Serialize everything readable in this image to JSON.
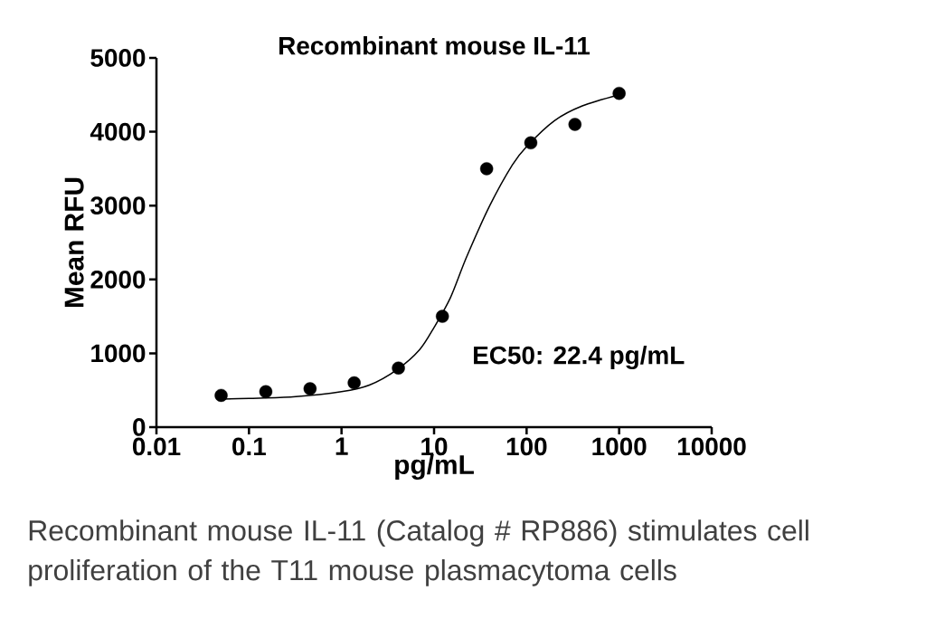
{
  "chart_data": {
    "type": "scatter",
    "title": "Recombinant mouse IL-11",
    "xlabel": "pg/mL",
    "ylabel": "Mean RFU",
    "log": "x",
    "series": [
      {
        "marker": "circle",
        "color": "#000000",
        "x": [
          0.05,
          0.152,
          0.457,
          1.37,
          4.12,
          12.3,
          37,
          111,
          333,
          1000
        ],
        "values": [
          430,
          480,
          520,
          600,
          800,
          1500,
          3500,
          3850,
          4100,
          4520
        ]
      },
      {
        "type": "line",
        "marker": "none",
        "color": "#000000",
        "x": [
          0.05,
          0.1,
          0.3,
          1,
          2,
          4,
          7,
          10,
          15,
          22.4,
          40,
          70,
          100,
          200,
          400,
          1000
        ],
        "values": [
          380,
          390,
          410,
          480,
          570,
          780,
          1050,
          1350,
          1750,
          2300,
          3000,
          3550,
          3800,
          4150,
          4350,
          4500
        ]
      }
    ],
    "xlim": [
      0.01,
      10000
    ],
    "xticks": [
      0.01,
      0.1,
      1,
      10,
      100,
      1000,
      10000
    ],
    "ylim": [
      0,
      5000
    ],
    "yticks": [
      0,
      1000,
      2000,
      3000,
      4000,
      5000
    ],
    "annotations": [
      "EC50: 22.4 pg/mL",
      "Recombinant mouse IL-11 (Catalog # RP886) stimulates cell proliferation of the T11 mouse plasmacytoma cells"
    ]
  }
}
